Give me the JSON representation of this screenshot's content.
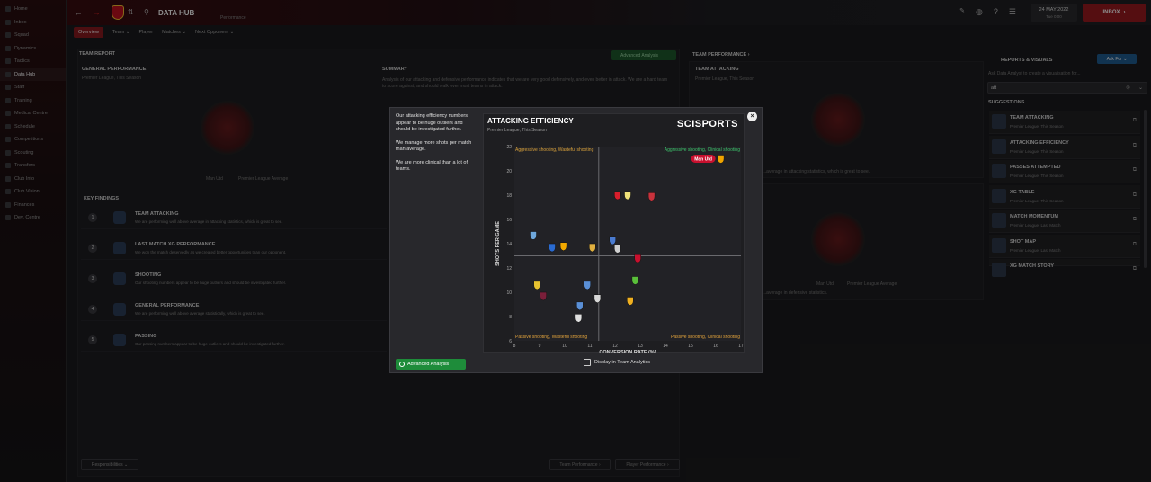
{
  "sidebar": {
    "items": [
      {
        "label": "Home"
      },
      {
        "label": "Inbox"
      },
      {
        "label": "Squad"
      },
      {
        "label": "Dynamics"
      },
      {
        "label": "Tactics"
      },
      {
        "label": "Data Hub"
      },
      {
        "label": "Staff"
      },
      {
        "label": "Training"
      },
      {
        "label": "Medical Centre"
      },
      {
        "label": "Schedule"
      },
      {
        "label": "Competitions"
      },
      {
        "label": "Scouting"
      },
      {
        "label": "Transfers"
      },
      {
        "label": "Club Info"
      },
      {
        "label": "Club Vision"
      },
      {
        "label": "Finances"
      },
      {
        "label": "Dev. Centre"
      }
    ]
  },
  "header": {
    "title": "DATA HUB",
    "subtitle": "Performance",
    "date": "24 MAY 2022",
    "day": "Tue 0:00",
    "inbox_label": "INBOX"
  },
  "tabs": [
    {
      "label": "Overview"
    },
    {
      "label": "Team ⌄"
    },
    {
      "label": "Player"
    },
    {
      "label": "Matches ⌄"
    },
    {
      "label": "Next Opponent ⌄"
    }
  ],
  "left_panel": {
    "team_report": "TEAM REPORT",
    "general_performance": "GENERAL PERFORMANCE",
    "gp_sub": "Premier League, This Season",
    "legend_man": "Man Utd",
    "legend_avg": "Premier League Average",
    "summary": "SUMMARY",
    "summary_text": "Analysis of our attacking and defensive performance indicates that we are very good defensively, and even better in attack. We are a hard team to score against, and should walk over most teams in attack.",
    "key_findings": "KEY FINDINGS",
    "advanced_analysis": "Advanced Analysis",
    "findings": [
      {
        "num": "1",
        "title": "TEAM ATTACKING",
        "desc": "We are performing well above average in attacking statistics, which is great to see."
      },
      {
        "num": "2",
        "title": "LAST MATCH XG PERFORMANCE",
        "desc": "We won the match deservedly as we created better opportunities than our opponent."
      },
      {
        "num": "3",
        "title": "SHOOTING",
        "desc": "Our shooting numbers appear to be huge outliers and should be investigated further."
      },
      {
        "num": "4",
        "title": "GENERAL PERFORMANCE",
        "desc": "We are performing well above average statistically, which is great to see."
      },
      {
        "num": "5",
        "title": "PASSING",
        "desc": "Our passing numbers appear to be huge outliers and should be investigated further."
      }
    ],
    "responsibilities": "Responsibilities ⌄"
  },
  "middle_panel": {
    "team_performance": "TEAM PERFORMANCE ›",
    "team_attacking": "TEAM ATTACKING",
    "ta_sub": "Premier League, This Season",
    "ta_desc": "...average in attacking statistics, which is great to see.",
    "def_desc": "...average in defensive statistics.",
    "legend_man": "Man Utd",
    "legend_avg": "Premier League Average",
    "btn_team_perf": "Team Performance ›",
    "btn_player_perf": "Player Performance ›"
  },
  "right_panel": {
    "title": "REPORTS & VISUALS",
    "ask_btn": "Ask For ⌄",
    "ask_text": "Ask Data Analyst to create a visualisation for...",
    "search_value": "att",
    "suggestions_label": "SUGGESTIONS",
    "items": [
      {
        "title": "TEAM ATTACKING",
        "desc": "Premier League, This Season"
      },
      {
        "title": "ATTACKING EFFICIENCY",
        "desc": "Premier League, This Season"
      },
      {
        "title": "PASSES ATTEMPTED",
        "desc": "Premier League, This Season"
      },
      {
        "title": "XG TABLE",
        "desc": "Premier League, This Season"
      },
      {
        "title": "MATCH MOMENTUM",
        "desc": "Premier League, Last Match"
      },
      {
        "title": "SHOT MAP",
        "desc": "Premier League, Last Match"
      },
      {
        "title": "XG MATCH STORY",
        "desc": ""
      }
    ]
  },
  "modal": {
    "text": [
      "Our attacking efficiency numbers appear to be huge outliers and should be investigated further.",
      "We manage more shots per match than average.",
      "We are more clinical than a lot of teams."
    ],
    "advanced_analysis": "Advanced Analysis",
    "display_label": "Display in Team Analytics",
    "close": "×",
    "brand": "SCISPORTS"
  },
  "chart_data": {
    "type": "scatter",
    "title": "ATTACKING EFFICIENCY",
    "subtitle": "Premier League, This Season",
    "xlabel": "CONVERSION RATE (%)",
    "ylabel": "SHOTS PER GAME",
    "xlim": [
      8,
      17
    ],
    "ylim": [
      6,
      22
    ],
    "xticks": [
      8,
      9,
      10,
      11,
      12,
      13,
      14,
      15,
      16,
      17
    ],
    "yticks": [
      6,
      8,
      10,
      12,
      14,
      16,
      18,
      20,
      22
    ],
    "avg_x": 11.35,
    "avg_y": 13.0,
    "quadrants": {
      "top_left": "Aggressive shooting, Wasteful shooting",
      "top_right": "Aggressive shooting, Clinical shooting",
      "bottom_left": "Passive shooting, Wasteful shooting",
      "bottom_right": "Passive shooting, Clinical shooting"
    },
    "highlight_label": "Man Utd",
    "colors": {
      "grid": "#6a6a6e",
      "quadrant_top": "#d9a13a",
      "quadrant_bottom": "#e0a23c",
      "top_right_text": "#3cc36b",
      "highlight": "#c8102e"
    },
    "points": [
      {
        "x": 8.75,
        "y": 14.7,
        "color": "#6fa8dc"
      },
      {
        "x": 9.5,
        "y": 13.7,
        "color": "#2a6bd1"
      },
      {
        "x": 9.95,
        "y": 13.8,
        "color": "#f2a900"
      },
      {
        "x": 11.1,
        "y": 13.7,
        "color": "#e0b040"
      },
      {
        "x": 11.9,
        "y": 14.3,
        "color": "#4a7bd0"
      },
      {
        "x": 12.1,
        "y": 18.0,
        "color": "#d81e2c"
      },
      {
        "x": 12.5,
        "y": 18.0,
        "color": "#f0e27a"
      },
      {
        "x": 12.1,
        "y": 13.6,
        "color": "#d0d0d0"
      },
      {
        "x": 13.45,
        "y": 17.9,
        "color": "#c8323c"
      },
      {
        "x": 12.9,
        "y": 12.8,
        "color": "#c8102e"
      },
      {
        "x": 16.2,
        "y": 21.0,
        "color": "#f0a400"
      },
      {
        "x": 8.9,
        "y": 10.6,
        "color": "#e6c230"
      },
      {
        "x": 9.15,
        "y": 9.7,
        "color": "#7a1f3a"
      },
      {
        "x": 10.9,
        "y": 10.6,
        "color": "#5a8fd6"
      },
      {
        "x": 10.6,
        "y": 8.9,
        "color": "#5a8fd6"
      },
      {
        "x": 10.55,
        "y": 7.9,
        "color": "#e0e0e0"
      },
      {
        "x": 11.3,
        "y": 9.5,
        "color": "#d8d8d8"
      },
      {
        "x": 12.8,
        "y": 11.0,
        "color": "#5abf3a"
      },
      {
        "x": 12.6,
        "y": 9.3,
        "color": "#f0b020"
      }
    ]
  }
}
